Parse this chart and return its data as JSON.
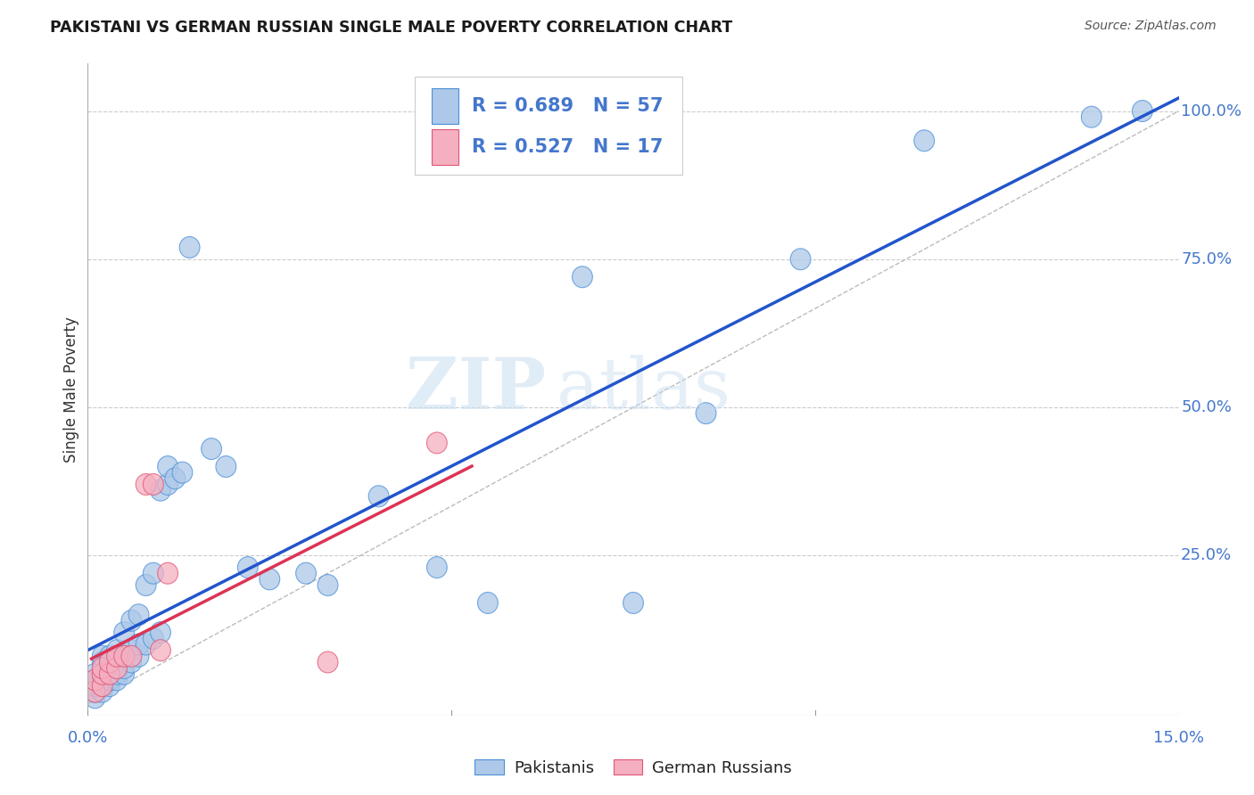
{
  "title": "PAKISTANI VS GERMAN RUSSIAN SINGLE MALE POVERTY CORRELATION CHART",
  "source": "Source: ZipAtlas.com",
  "ylabel": "Single Male Poverty",
  "xmin": 0.0,
  "xmax": 0.15,
  "ymin": -0.02,
  "ymax": 1.08,
  "blue_R": 0.689,
  "blue_N": 57,
  "pink_R": 0.527,
  "pink_N": 17,
  "blue_color": "#adc8e8",
  "pink_color": "#f5afc0",
  "blue_edge_color": "#4a90d9",
  "pink_edge_color": "#e05575",
  "blue_line_color": "#2255cc",
  "pink_line_color": "#dd3355",
  "diagonal_color": "#bbbbbb",
  "watermark_zip": "ZIP",
  "watermark_atlas": "atlas",
  "legend_label_blue": "Pakistanis",
  "legend_label_pink": "German Russians",
  "blue_points_x": [
    0.001,
    0.001,
    0.001,
    0.001,
    0.001,
    0.002,
    0.002,
    0.002,
    0.002,
    0.002,
    0.002,
    0.003,
    0.003,
    0.003,
    0.003,
    0.003,
    0.004,
    0.004,
    0.004,
    0.004,
    0.005,
    0.005,
    0.005,
    0.005,
    0.006,
    0.006,
    0.006,
    0.007,
    0.007,
    0.007,
    0.008,
    0.008,
    0.009,
    0.009,
    0.01,
    0.01,
    0.011,
    0.011,
    0.012,
    0.013,
    0.014,
    0.017,
    0.019,
    0.022,
    0.025,
    0.03,
    0.033,
    0.04,
    0.048,
    0.055,
    0.068,
    0.075,
    0.085,
    0.098,
    0.115,
    0.138,
    0.145
  ],
  "blue_points_y": [
    0.01,
    0.02,
    0.03,
    0.04,
    0.05,
    0.02,
    0.03,
    0.04,
    0.05,
    0.07,
    0.08,
    0.03,
    0.04,
    0.05,
    0.06,
    0.08,
    0.04,
    0.05,
    0.06,
    0.09,
    0.05,
    0.06,
    0.08,
    0.12,
    0.07,
    0.09,
    0.14,
    0.08,
    0.1,
    0.15,
    0.1,
    0.2,
    0.11,
    0.22,
    0.12,
    0.36,
    0.37,
    0.4,
    0.38,
    0.39,
    0.77,
    0.43,
    0.4,
    0.23,
    0.21,
    0.22,
    0.2,
    0.35,
    0.23,
    0.17,
    0.72,
    0.17,
    0.49,
    0.75,
    0.95,
    0.99,
    1.0
  ],
  "pink_points_x": [
    0.001,
    0.001,
    0.002,
    0.002,
    0.002,
    0.003,
    0.003,
    0.004,
    0.004,
    0.005,
    0.006,
    0.008,
    0.009,
    0.01,
    0.011,
    0.033,
    0.048
  ],
  "pink_points_y": [
    0.02,
    0.04,
    0.03,
    0.05,
    0.06,
    0.05,
    0.07,
    0.06,
    0.08,
    0.08,
    0.08,
    0.37,
    0.37,
    0.09,
    0.22,
    0.07,
    0.44
  ]
}
